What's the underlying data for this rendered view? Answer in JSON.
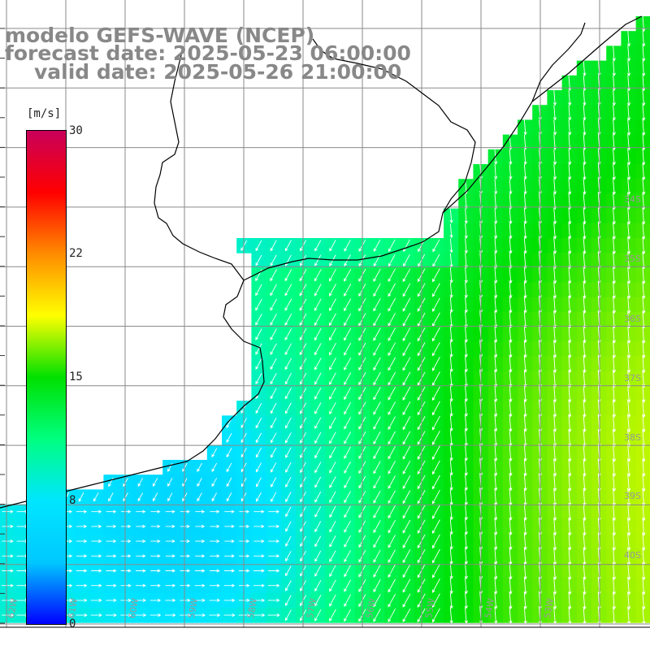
{
  "title": {
    "line1": "modelo GEFS-WAVE (NCEP)",
    "line2": "forecast date: 2025-05-23 06:00:00",
    "line3": "valid date: 2025-05-26 21:00:00"
  },
  "colorbar": {
    "unit": "[m/s]",
    "ticks": [
      "30",
      "22",
      "15",
      "8",
      "0"
    ],
    "min": 0,
    "max": 30,
    "stops": [
      "#0000ff",
      "#00c8ff",
      "#00e6ff",
      "#00ff80",
      "#00e000",
      "#ffff00",
      "#ff8c00",
      "#ff0000",
      "#c8005a"
    ]
  },
  "lat_labels": [
    "34S",
    "35S",
    "36S",
    "37S",
    "38S",
    "39S",
    "40S"
  ],
  "lon_labels": [
    "62W",
    "61W",
    "60W",
    "59W",
    "58W",
    "57W",
    "56W",
    "55W",
    "54W",
    "53W"
  ],
  "colors": {
    "coast": "#000000",
    "grid": "#8a8a8a",
    "arrow": "#ffffff",
    "title": "#888888"
  }
}
